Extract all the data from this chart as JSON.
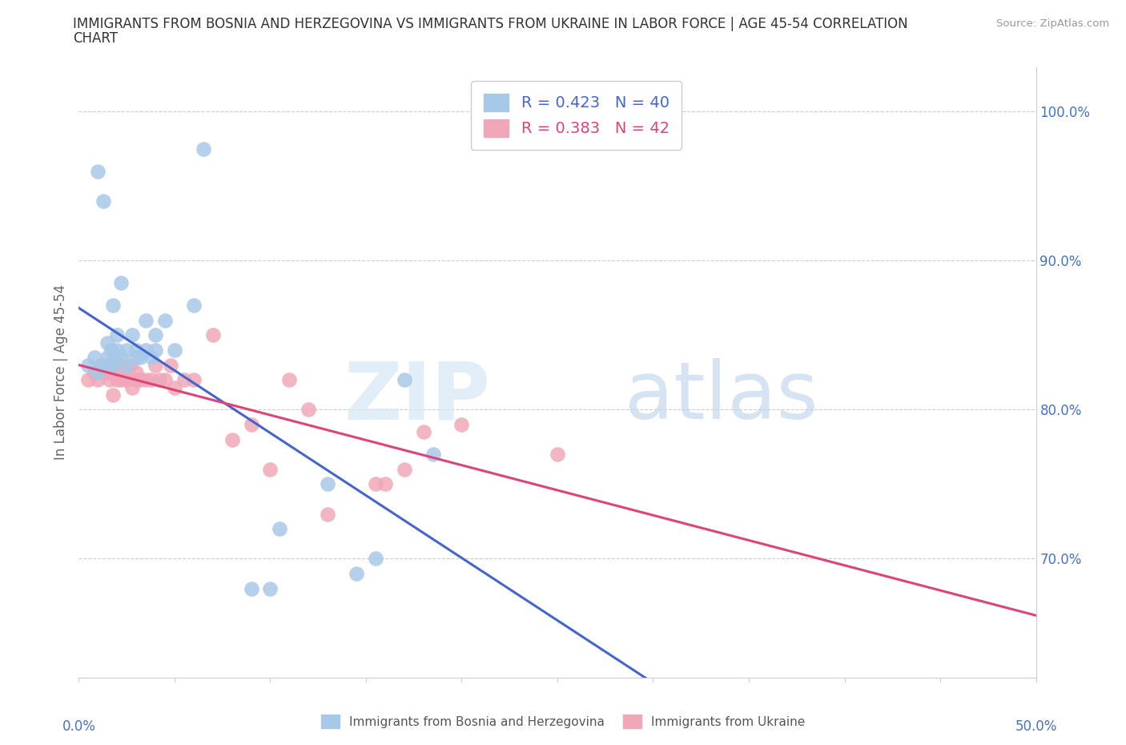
{
  "title_line1": "IMMIGRANTS FROM BOSNIA AND HERZEGOVINA VS IMMIGRANTS FROM UKRAINE IN LABOR FORCE | AGE 45-54 CORRELATION",
  "title_line2": "CHART",
  "source": "Source: ZipAtlas.com",
  "ylabel_label": "In Labor Force | Age 45-54",
  "legend_label_blue": "Immigrants from Bosnia and Herzegovina",
  "legend_label_pink": "Immigrants from Ukraine",
  "R_blue": 0.423,
  "N_blue": 40,
  "R_pink": 0.383,
  "N_pink": 42,
  "blue_color": "#A8C8E8",
  "pink_color": "#F0A8B8",
  "trendline_blue": "#4466CC",
  "trendline_pink": "#DD4477",
  "xlim": [
    0.0,
    0.5
  ],
  "ylim": [
    0.62,
    1.03
  ],
  "yticks": [
    0.7,
    0.8,
    0.9,
    1.0
  ],
  "ytick_labels": [
    "70.0%",
    "80.0%",
    "90.0%",
    "100.0%"
  ],
  "xtick_labels_show": [
    "0.0%",
    "50.0%"
  ],
  "title_color": "#333333",
  "axis_label_color": "#4472C4",
  "grid_color": "#CCCCCC",
  "blue_x": [
    0.005,
    0.008,
    0.01,
    0.01,
    0.012,
    0.013,
    0.015,
    0.015,
    0.015,
    0.017,
    0.018,
    0.018,
    0.019,
    0.02,
    0.02,
    0.022,
    0.022,
    0.025,
    0.025,
    0.028,
    0.03,
    0.03,
    0.032,
    0.035,
    0.035,
    0.038,
    0.04,
    0.04,
    0.045,
    0.05,
    0.06,
    0.065,
    0.09,
    0.1,
    0.105,
    0.13,
    0.145,
    0.155,
    0.17,
    0.185
  ],
  "blue_y": [
    0.83,
    0.835,
    0.825,
    0.96,
    0.83,
    0.94,
    0.835,
    0.845,
    0.83,
    0.84,
    0.83,
    0.87,
    0.835,
    0.84,
    0.85,
    0.835,
    0.885,
    0.84,
    0.83,
    0.85,
    0.835,
    0.84,
    0.835,
    0.84,
    0.86,
    0.835,
    0.84,
    0.85,
    0.86,
    0.84,
    0.87,
    0.975,
    0.68,
    0.68,
    0.72,
    0.75,
    0.69,
    0.7,
    0.82,
    0.77
  ],
  "pink_x": [
    0.005,
    0.008,
    0.01,
    0.012,
    0.013,
    0.015,
    0.016,
    0.018,
    0.018,
    0.02,
    0.02,
    0.022,
    0.023,
    0.025,
    0.025,
    0.027,
    0.028,
    0.03,
    0.03,
    0.032,
    0.035,
    0.038,
    0.04,
    0.042,
    0.045,
    0.048,
    0.05,
    0.055,
    0.06,
    0.07,
    0.08,
    0.09,
    0.1,
    0.11,
    0.12,
    0.13,
    0.155,
    0.16,
    0.17,
    0.18,
    0.2,
    0.25
  ],
  "pink_y": [
    0.82,
    0.825,
    0.82,
    0.83,
    0.825,
    0.825,
    0.82,
    0.83,
    0.81,
    0.825,
    0.82,
    0.82,
    0.83,
    0.82,
    0.82,
    0.83,
    0.815,
    0.82,
    0.825,
    0.82,
    0.82,
    0.82,
    0.83,
    0.82,
    0.82,
    0.83,
    0.815,
    0.82,
    0.82,
    0.85,
    0.78,
    0.79,
    0.76,
    0.82,
    0.8,
    0.73,
    0.75,
    0.75,
    0.76,
    0.785,
    0.79,
    0.77
  ]
}
